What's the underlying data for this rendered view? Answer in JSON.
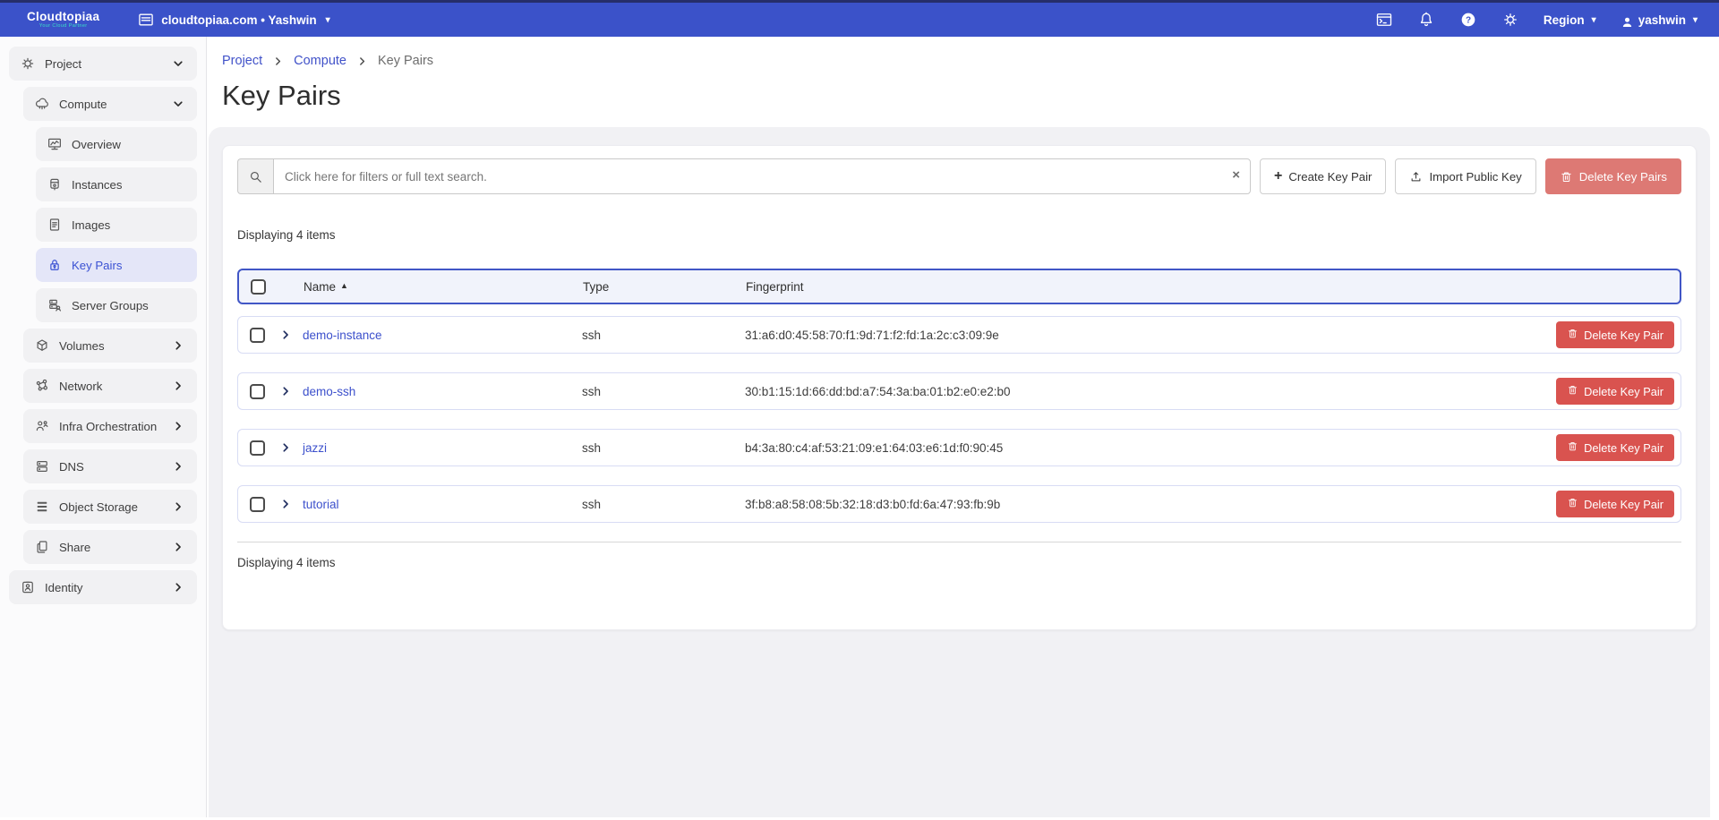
{
  "topbar": {
    "logo": {
      "title": "Cloudtopiaa",
      "tagline": "Your Cloud Partner"
    },
    "domain_menu": {
      "icon": "console-list-icon",
      "label": "cloudtopiaa.com • Yashwin",
      "caret": "▾"
    },
    "icons": [
      {
        "name": "terminal-window-icon"
      },
      {
        "name": "bell-icon"
      },
      {
        "name": "help-icon"
      },
      {
        "name": "settings-gear-icon"
      }
    ],
    "region": {
      "label": "Region",
      "caret": "▾"
    },
    "user": {
      "icon": "user-icon",
      "label": "yashwin",
      "caret": "▾"
    }
  },
  "sidebar": {
    "items": [
      {
        "label": "Project",
        "icon": "project-icon",
        "slug": "project",
        "level": 0,
        "chevron": "down",
        "active": false
      },
      {
        "label": "Compute",
        "icon": "compute-cloud-icon",
        "slug": "compute",
        "level": 1,
        "chevron": "down",
        "active": false
      },
      {
        "label": "Overview",
        "icon": "overview-icon",
        "slug": "overview",
        "level": 2,
        "chevron": "none",
        "active": false
      },
      {
        "label": "Instances",
        "icon": "instances-icon",
        "slug": "instances",
        "level": 2,
        "chevron": "none",
        "active": false
      },
      {
        "label": "Images",
        "icon": "images-icon",
        "slug": "images",
        "level": 2,
        "chevron": "none",
        "active": false
      },
      {
        "label": "Key Pairs",
        "icon": "key-pairs-icon",
        "slug": "key-pairs",
        "level": 2,
        "chevron": "none",
        "active": true
      },
      {
        "label": "Server Groups",
        "icon": "server-groups-icon",
        "slug": "server-groups",
        "level": 2,
        "chevron": "none",
        "active": false
      },
      {
        "label": "Volumes",
        "icon": "volumes-icon",
        "slug": "volumes",
        "level": 1,
        "chevron": "right",
        "active": false
      },
      {
        "label": "Network",
        "icon": "network-icon",
        "slug": "network",
        "level": 1,
        "chevron": "right",
        "active": false
      },
      {
        "label": "Infra Orchestration",
        "icon": "infra-orchestration-icon",
        "slug": "infra-orchestration",
        "level": 1,
        "chevron": "right",
        "active": false
      },
      {
        "label": "DNS",
        "icon": "dns-icon",
        "slug": "dns",
        "level": 1,
        "chevron": "right",
        "active": false
      },
      {
        "label": "Object Storage",
        "icon": "object-storage-icon",
        "slug": "object-storage",
        "level": 1,
        "chevron": "right",
        "active": false
      },
      {
        "label": "Share",
        "icon": "share-icon",
        "slug": "share",
        "level": 1,
        "chevron": "right",
        "active": false
      },
      {
        "label": "Identity",
        "icon": "identity-icon",
        "slug": "identity",
        "level": 0,
        "chevron": "right",
        "active": false
      }
    ]
  },
  "breadcrumb": {
    "items": [
      "Project",
      "Compute",
      "Key Pairs"
    ]
  },
  "page": {
    "title": "Key Pairs"
  },
  "toolbar": {
    "search_placeholder": "Click here for filters or full text search.",
    "create_button": "Create Key Pair",
    "import_button": "Import Public Key",
    "delete_button": "Delete Key Pairs"
  },
  "table": {
    "count_top": "Displaying 4 items",
    "count_bottom": "Displaying 4 items",
    "columns": {
      "name": "Name",
      "type": "Type",
      "fingerprint": "Fingerprint"
    },
    "sort_column": "Name",
    "sort_ascending": true,
    "row_action_label": "Delete Key Pair",
    "rows": [
      {
        "name": "demo-instance",
        "type": "ssh",
        "fingerprint": "31:a6:d0:45:58:70:f1:9d:71:f2:fd:1a:2c:c3:09:9e"
      },
      {
        "name": "demo-ssh",
        "type": "ssh",
        "fingerprint": "30:b1:15:1d:66:dd:bd:a7:54:3a:ba:01:b2:e0:e2:b0"
      },
      {
        "name": "jazzi",
        "type": "ssh",
        "fingerprint": "b4:3a:80:c4:af:53:21:09:e1:64:03:e6:1d:f0:90:45"
      },
      {
        "name": "tutorial",
        "type": "ssh",
        "fingerprint": "3f:b8:a8:58:08:5b:32:18:d3:b0:fd:6a:47:93:fb:9b"
      }
    ]
  },
  "colors": {
    "topbar_blue": "#3b52c9",
    "accent_blue": "#3c51cb",
    "header_border_blue": "#4156c6",
    "danger_red": "#d9534f",
    "danger_muted": "#dd7974",
    "panel_gray": "#f1f1f4",
    "active_item_bg": "#e4e6f8"
  }
}
